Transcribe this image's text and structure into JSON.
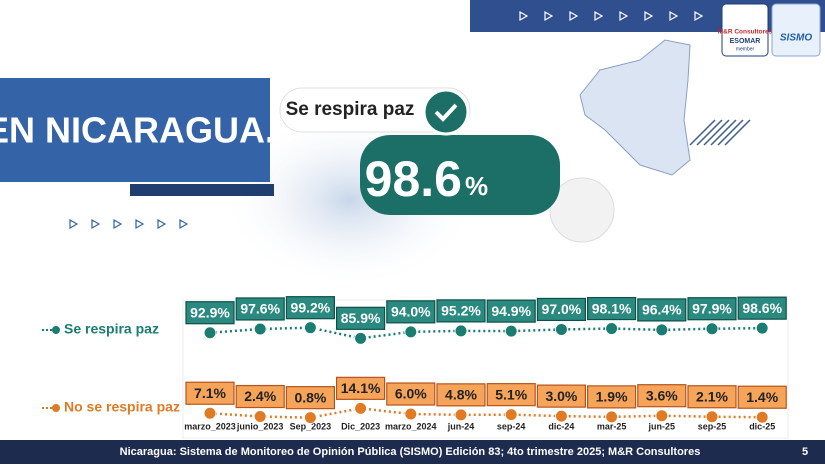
{
  "header": {
    "title": "EN NICARAGUA...",
    "logo_text": "M&R Consultores",
    "logo_sub": "ESOMAR",
    "logo_member": "member",
    "logo2": "SISMO"
  },
  "headline": {
    "label": "Se respira paz",
    "value": "98.6",
    "unit": "%"
  },
  "chart_data": {
    "type": "line",
    "categories": [
      "marzo_2023",
      "junio_2023",
      "Sep_2023",
      "Dic_2023",
      "marzo_2024",
      "jun-24",
      "sep-24",
      "dic-24",
      "mar-25",
      "jun-25",
      "sep-25",
      "dic-25"
    ],
    "series": [
      {
        "name": "Se respira paz",
        "color": "#1b7d72",
        "values": [
          92.9,
          97.6,
          99.2,
          85.9,
          94.0,
          95.2,
          94.9,
          97.0,
          98.1,
          96.4,
          97.9,
          98.6
        ],
        "value_labels": [
          "92.9%",
          "97.6%",
          "99.2%",
          "85.9%",
          "94.0%",
          "95.2%",
          "94.9%",
          "97.0%",
          "98.1%",
          "96.4%",
          "97.9%",
          "98.6%"
        ]
      },
      {
        "name": "No se respira paz",
        "color": "#e07b24",
        "values": [
          7.1,
          2.4,
          0.8,
          14.1,
          6.0,
          4.8,
          5.1,
          3.0,
          1.9,
          3.6,
          2.1,
          1.4
        ],
        "value_labels": [
          "7.1%",
          "2.4%",
          "0.8%",
          "14.1%",
          "6.0%",
          "4.8%",
          "5.1%",
          "3.0%",
          "1.9%",
          "3.6%",
          "2.1%",
          "1.4%"
        ]
      }
    ]
  },
  "footer": {
    "source": "Nicaragua: Sistema de Monitoreo de Opinión Pública (SISMO) Edición 83; 4to trimestre 2025; M&R Consultores",
    "page": "5"
  }
}
